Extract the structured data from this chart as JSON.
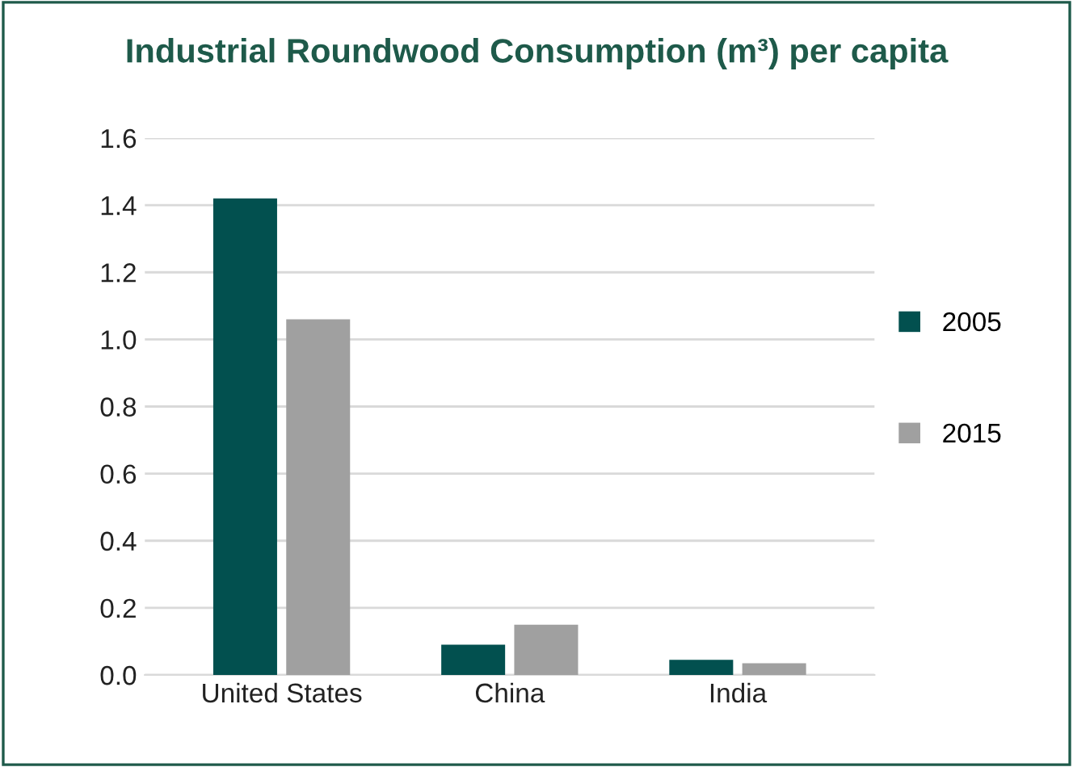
{
  "chart_data": {
    "type": "bar",
    "title": "Industrial Roundwood Consumption (m³) per capita",
    "categories": [
      "United States",
      "China",
      "India"
    ],
    "series": [
      {
        "name": "2005",
        "color": "#02504f",
        "values": [
          1.42,
          0.09,
          0.045
        ]
      },
      {
        "name": "2015",
        "color": "#a0a0a0",
        "values": [
          1.06,
          0.15,
          0.035
        ]
      }
    ],
    "ylim": [
      0,
      1.6
    ],
    "yticks": [
      {
        "value": 0,
        "label": "0.0"
      },
      {
        "value": 0.2,
        "label": "0.2"
      },
      {
        "value": 0.4,
        "label": "0.4"
      },
      {
        "value": 0.6,
        "label": "0.6"
      },
      {
        "value": 0.8,
        "label": "0.8"
      },
      {
        "value": 1.0,
        "label": "1.0"
      },
      {
        "value": 1.2,
        "label": "1.2"
      },
      {
        "value": 1.4,
        "label": "1.4"
      },
      {
        "value": 1.6,
        "label": "1.6"
      }
    ],
    "grid": "y",
    "legend": "right"
  }
}
